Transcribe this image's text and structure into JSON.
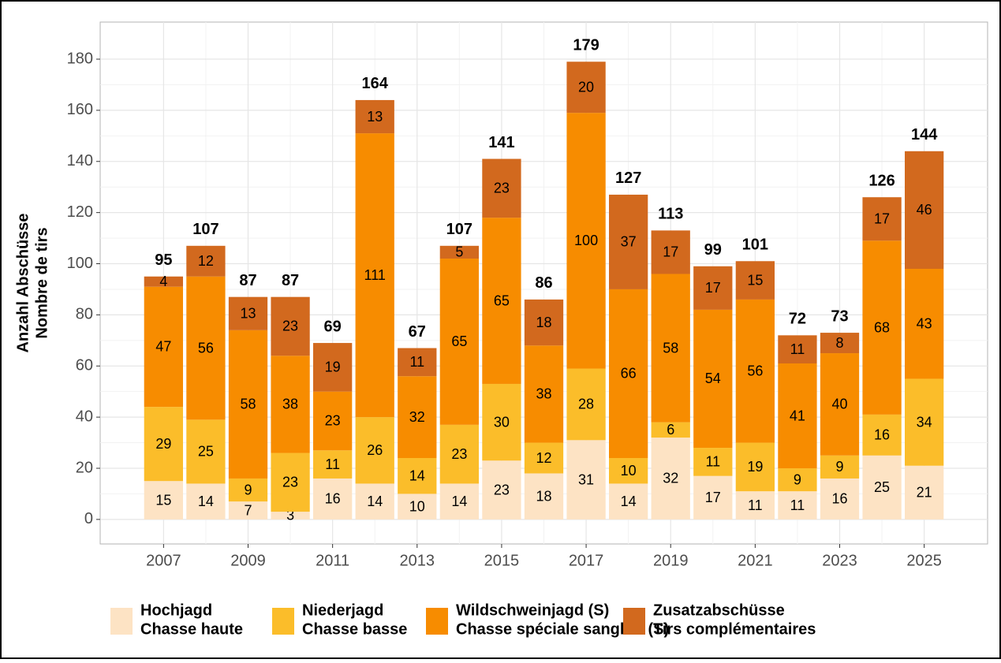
{
  "chart_data": {
    "type": "stacked_bar",
    "y_label": [
      "Anzahl Abschüsse",
      "Nombre de tirs"
    ],
    "x": [
      2007,
      2008,
      2009,
      2010,
      2011,
      2012,
      2013,
      2014,
      2015,
      2016,
      2017,
      2018,
      2019,
      2020,
      2021,
      2022,
      2023,
      2024,
      2025
    ],
    "xlim": [
      2005.5,
      2026.5
    ],
    "xticks": [
      2007,
      2009,
      2011,
      2013,
      2015,
      2017,
      2019,
      2021,
      2023,
      2025
    ],
    "ylim": [
      -9.6,
      194.5
    ],
    "yticks": [
      0,
      20,
      40,
      60,
      80,
      100,
      120,
      140,
      160,
      180
    ],
    "grid": true,
    "legend": "bottom",
    "series": [
      {
        "name": [
          "Hochjagd",
          "Chasse haute"
        ],
        "color": "#fde3c4",
        "values": [
          15,
          14,
          7,
          3,
          16,
          14,
          10,
          14,
          23,
          18,
          31,
          14,
          32,
          17,
          11,
          11,
          16,
          25,
          21
        ]
      },
      {
        "name": [
          "Niederjagd",
          "Chasse basse"
        ],
        "color": "#fbbd2a",
        "values": [
          29,
          25,
          9,
          23,
          11,
          26,
          14,
          23,
          30,
          12,
          28,
          10,
          6,
          11,
          19,
          9,
          9,
          16,
          34
        ]
      },
      {
        "name": [
          "Wildschweinjagd (S)",
          "Chasse spéciale sanglier (S)"
        ],
        "color": "#f78c00",
        "values": [
          47,
          56,
          58,
          38,
          23,
          111,
          32,
          65,
          65,
          38,
          100,
          66,
          58,
          54,
          56,
          41,
          40,
          68,
          43
        ]
      },
      {
        "name": [
          "Zusatzabschüsse",
          "Tirs complémentaires"
        ],
        "color": "#d2691e",
        "values": [
          4,
          12,
          13,
          23,
          19,
          13,
          11,
          5,
          23,
          18,
          20,
          37,
          17,
          17,
          15,
          11,
          8,
          17,
          46
        ]
      }
    ],
    "totals": [
      95,
      107,
      87,
      87,
      69,
      164,
      67,
      107,
      141,
      86,
      179,
      127,
      113,
      99,
      101,
      72,
      73,
      126,
      144
    ]
  }
}
